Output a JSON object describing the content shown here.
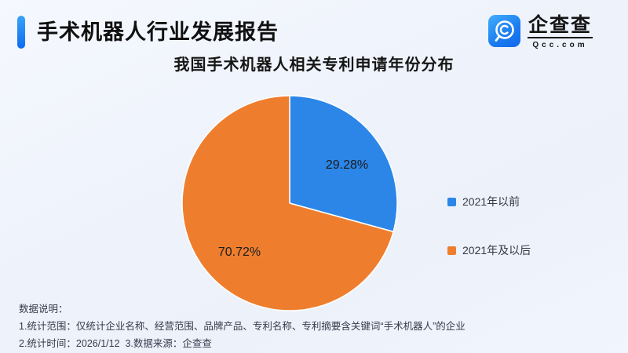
{
  "header": {
    "report_title": "手术机器人行业发展报告",
    "logo": {
      "name": "企查查",
      "domain": "Qcc.com"
    }
  },
  "chart_data": {
    "type": "pie",
    "title": "我国手术机器人相关专利申请年份分布",
    "labels": [
      "2021年以前",
      "2021年及以后"
    ],
    "values": [
      29.28,
      70.72
    ],
    "unit": "percent",
    "data_labels": [
      "29.28%",
      "70.72%"
    ],
    "colors": [
      "#2b86e8",
      "#ee7e2e"
    ],
    "slice_border_color": "#ffffff",
    "start_angle": "top",
    "direction": "clockwise",
    "legend_position": "right"
  },
  "footer": {
    "heading": "数据说明：",
    "note1": "1.统计范围：仅统计企业名称、经营范围、品牌产品、专利名称、专利摘要含关键词“手术机器人”的企业",
    "note2": "2.统计时间：2026/1/12  3.数据来源：企查查"
  },
  "accent_color": "#1273f0"
}
